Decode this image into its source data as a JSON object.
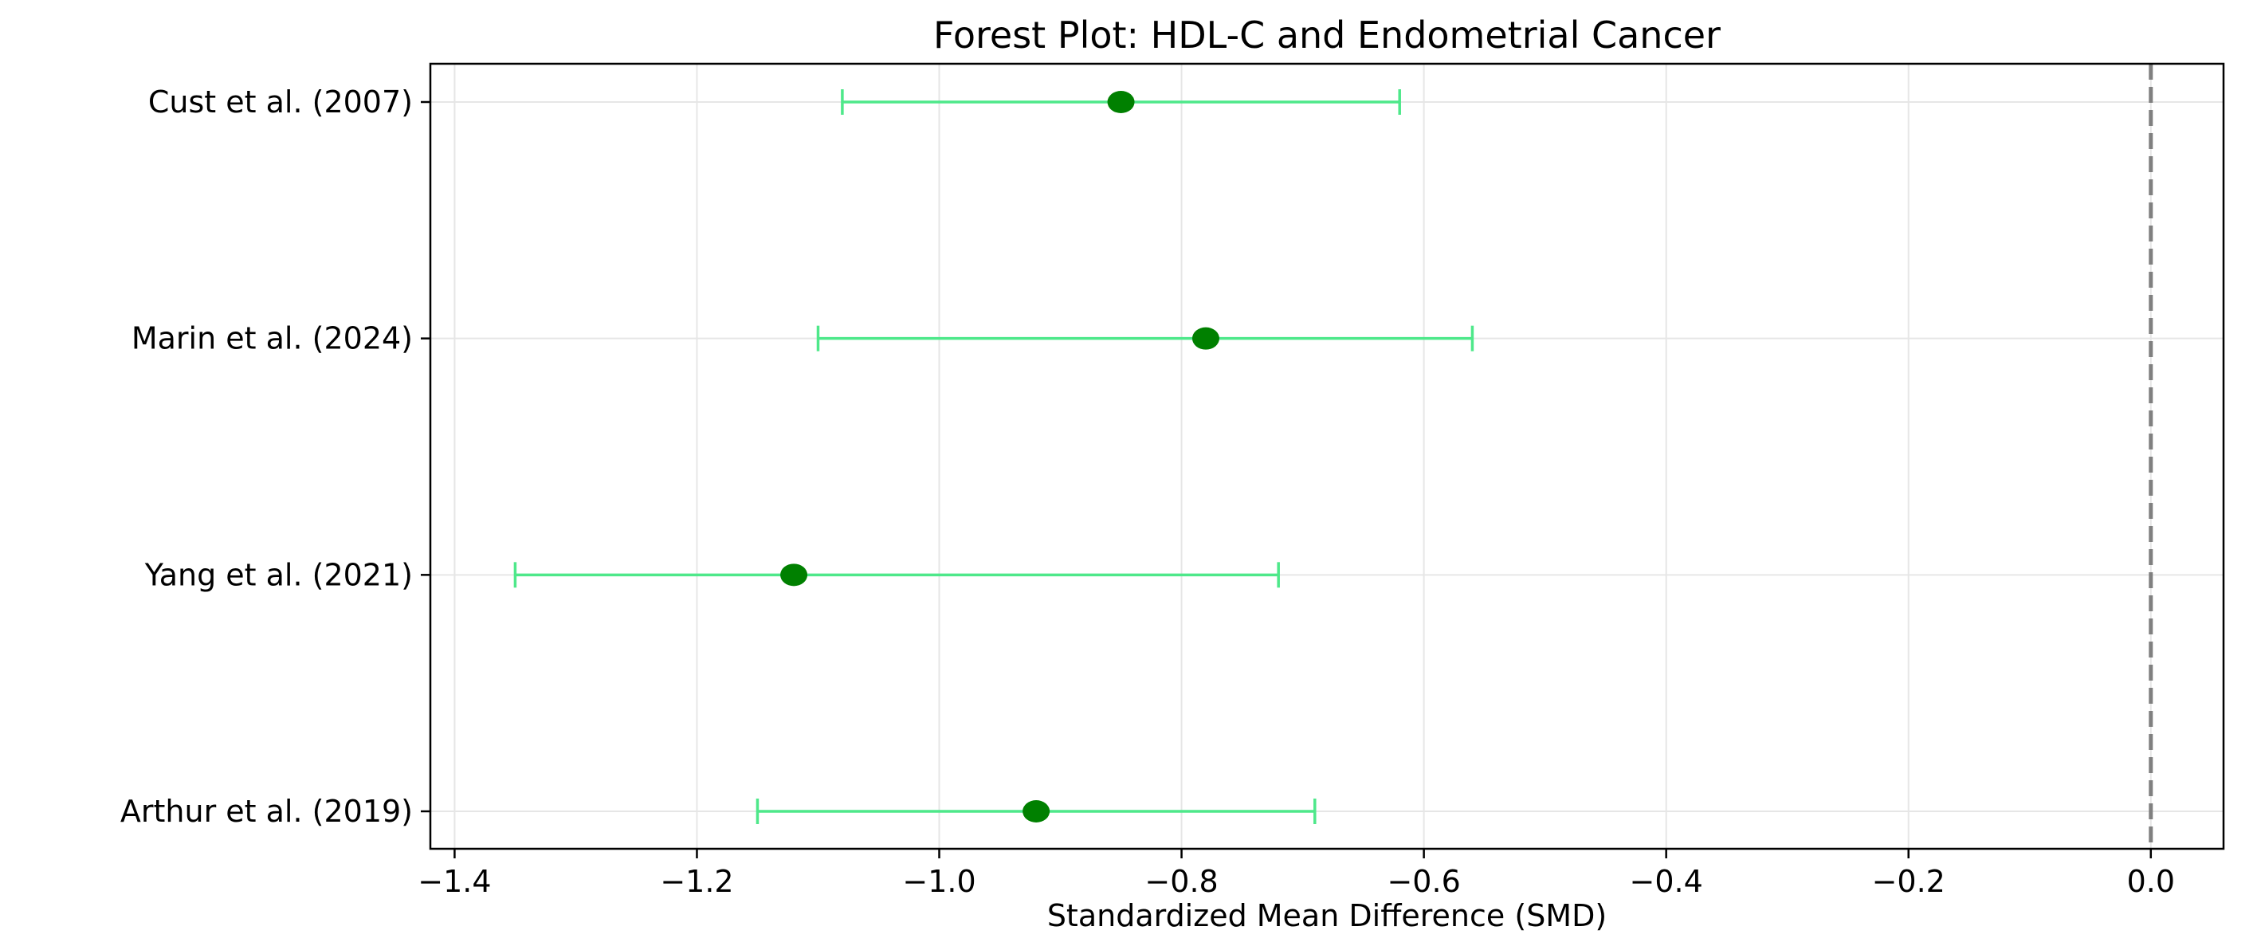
{
  "chart_data": {
    "type": "forest",
    "title": "Forest Plot: HDL-C and Endometrial Cancer",
    "xlabel": "Standardized Mean Difference (SMD)",
    "ylabel": "",
    "xlim": [
      -1.42,
      0.06
    ],
    "xticks": [
      -1.4,
      -1.2,
      -1.0,
      -0.8,
      -0.6,
      -0.4,
      -0.2,
      0.0
    ],
    "xtick_labels": [
      "−1.4",
      "−1.2",
      "−1.0",
      "−0.8",
      "−0.6",
      "−0.4",
      "−0.2",
      "0.0"
    ],
    "grid": true,
    "reference_line": {
      "x": 0.0,
      "style": "dashed",
      "color": "#808080"
    },
    "colors": {
      "point": "#008000",
      "ci": "#4ee88a"
    },
    "studies": [
      {
        "label": "Cust et al. (2007)",
        "smd": -0.85,
        "ci_low": -1.08,
        "ci_high": -0.62
      },
      {
        "label": "Marin et al. (2024)",
        "smd": -0.78,
        "ci_low": -1.1,
        "ci_high": -0.56
      },
      {
        "label": "Yang et al. (2021)",
        "smd": -1.12,
        "ci_low": -1.35,
        "ci_high": -0.72
      },
      {
        "label": "Arthur et al. (2019)",
        "smd": -0.92,
        "ci_low": -1.15,
        "ci_high": -0.69
      }
    ]
  }
}
